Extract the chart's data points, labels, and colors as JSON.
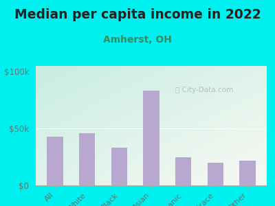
{
  "title": "Median per capita income in 2022",
  "subtitle": "Amherst, OH",
  "categories": [
    "All",
    "White",
    "Black",
    "Asian",
    "Hispanic",
    "Multirace",
    "Other"
  ],
  "values": [
    43000,
    46000,
    33000,
    83000,
    25000,
    20000,
    22000
  ],
  "bar_color": "#b8a8d0",
  "background_outer": "#00f0f0",
  "background_inner_topleft": "#c8eee0",
  "background_inner_bottomright": "#f8f8f4",
  "yticks": [
    0,
    50000,
    100000
  ],
  "ytick_labels": [
    "$0",
    "$50k",
    "$100k"
  ],
  "ylim": [
    0,
    105000
  ],
  "title_fontsize": 13.5,
  "subtitle_fontsize": 10,
  "subtitle_color": "#3a8a60",
  "tick_color": "#607870",
  "watermark": "City-Data.com",
  "watermark_icon": "ⓘ"
}
